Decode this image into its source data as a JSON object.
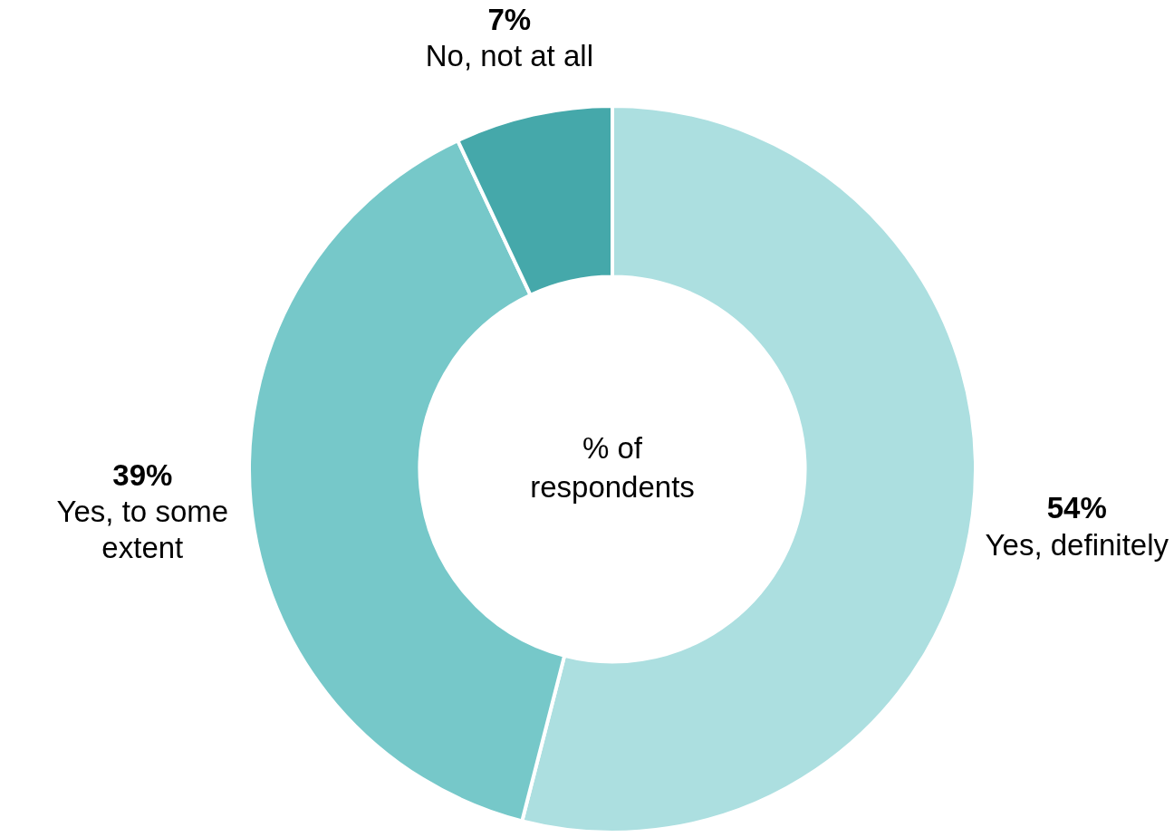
{
  "chart_data": {
    "type": "donut",
    "title": "% of respondents",
    "categories": [
      "Yes, definitely",
      "Yes, to some extent",
      "No, not at all"
    ],
    "values": [
      54,
      39,
      7
    ],
    "colors": [
      "#acdfe0",
      "#76c8c9",
      "#45a8aa"
    ],
    "value_labels": [
      "54%",
      "39%",
      "7%"
    ],
    "legend": false
  }
}
